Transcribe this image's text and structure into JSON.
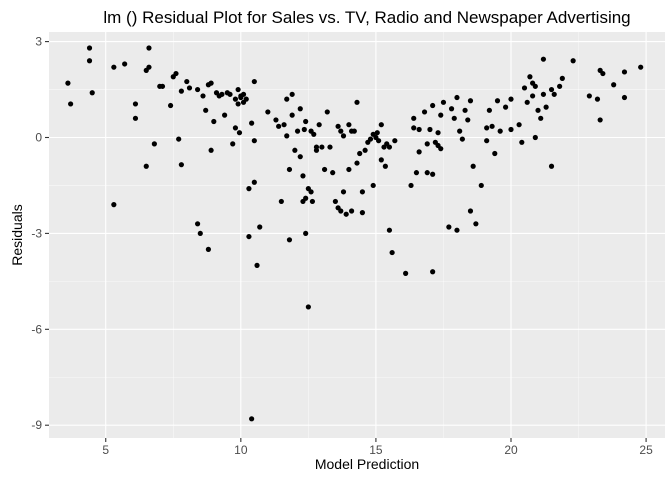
{
  "chart_data": {
    "type": "scatter",
    "title": "lm () Residual Plot for Sales vs. TV, Radio and Newspaper Advertising",
    "xlabel": "Model Prediction",
    "ylabel": "Residuals",
    "xlim": [
      2.9,
      25.7
    ],
    "ylim": [
      -9.4,
      3.3
    ],
    "x_ticks": [
      5,
      10,
      15,
      20,
      25
    ],
    "y_ticks": [
      3,
      0,
      -3,
      -6,
      -9
    ],
    "x_tick_labels": [
      "5",
      "10",
      "15",
      "20",
      "25"
    ],
    "y_tick_labels": [
      "3",
      "0",
      "-3",
      "-6",
      "-9"
    ],
    "grid": true,
    "legend": "none",
    "colors": {
      "panel": "#ebebeb",
      "grid": "#ffffff",
      "point": "#000000"
    },
    "points": [
      [
        3.6,
        1.7
      ],
      [
        3.7,
        1.05
      ],
      [
        4.4,
        2.8
      ],
      [
        4.4,
        2.4
      ],
      [
        4.5,
        1.4
      ],
      [
        5.3,
        2.2
      ],
      [
        5.3,
        -2.1
      ],
      [
        5.7,
        2.3
      ],
      [
        6.1,
        1.05
      ],
      [
        6.1,
        0.6
      ],
      [
        6.5,
        -0.9
      ],
      [
        6.5,
        2.1
      ],
      [
        6.6,
        2.8
      ],
      [
        6.6,
        2.2
      ],
      [
        6.8,
        -0.2
      ],
      [
        7.0,
        1.6
      ],
      [
        7.1,
        1.6
      ],
      [
        7.4,
        1.0
      ],
      [
        7.5,
        1.9
      ],
      [
        7.6,
        2.0
      ],
      [
        7.7,
        -0.05
      ],
      [
        7.8,
        1.45
      ],
      [
        7.8,
        -0.85
      ],
      [
        8.0,
        1.75
      ],
      [
        8.1,
        1.55
      ],
      [
        8.4,
        1.5
      ],
      [
        8.4,
        -2.7
      ],
      [
        8.5,
        -3.0
      ],
      [
        8.6,
        1.3
      ],
      [
        8.7,
        0.85
      ],
      [
        8.8,
        1.65
      ],
      [
        8.8,
        -3.5
      ],
      [
        8.9,
        -0.4
      ],
      [
        8.9,
        1.7
      ],
      [
        9.0,
        0.5
      ],
      [
        9.1,
        1.4
      ],
      [
        9.2,
        1.3
      ],
      [
        9.3,
        1.35
      ],
      [
        9.4,
        0.7
      ],
      [
        9.5,
        1.4
      ],
      [
        9.6,
        1.35
      ],
      [
        9.7,
        -0.2
      ],
      [
        9.8,
        0.3
      ],
      [
        9.8,
        1.2
      ],
      [
        9.9,
        1.5
      ],
      [
        9.9,
        1.05
      ],
      [
        9.95,
        0.15
      ],
      [
        10.0,
        1.3
      ],
      [
        10.0,
        1.25
      ],
      [
        10.1,
        1.35
      ],
      [
        10.1,
        1.1
      ],
      [
        10.2,
        1.2
      ],
      [
        10.3,
        -1.6
      ],
      [
        10.3,
        -3.1
      ],
      [
        10.4,
        -8.8
      ],
      [
        10.4,
        0.45
      ],
      [
        10.5,
        -1.4
      ],
      [
        10.5,
        1.75
      ],
      [
        10.5,
        -0.1
      ],
      [
        10.6,
        -4.0
      ],
      [
        10.7,
        -2.8
      ],
      [
        11.0,
        0.8
      ],
      [
        11.3,
        0.55
      ],
      [
        11.4,
        0.35
      ],
      [
        11.5,
        -2.0
      ],
      [
        11.6,
        0.4
      ],
      [
        11.7,
        1.2
      ],
      [
        11.7,
        0.05
      ],
      [
        11.8,
        -3.2
      ],
      [
        11.8,
        -1.0
      ],
      [
        11.9,
        0.7
      ],
      [
        11.9,
        1.35
      ],
      [
        12.0,
        -0.4
      ],
      [
        12.1,
        0.2
      ],
      [
        12.2,
        -0.6
      ],
      [
        12.2,
        0.9
      ],
      [
        12.3,
        -1.2
      ],
      [
        12.3,
        -2.0
      ],
      [
        12.35,
        0.25
      ],
      [
        12.4,
        0.5
      ],
      [
        12.4,
        -1.9
      ],
      [
        12.4,
        -3.0
      ],
      [
        12.5,
        -5.3
      ],
      [
        12.5,
        -1.6
      ],
      [
        12.6,
        0.2
      ],
      [
        12.6,
        -1.7
      ],
      [
        12.65,
        -2.0
      ],
      [
        12.7,
        0.1
      ],
      [
        12.8,
        -0.3
      ],
      [
        12.8,
        -0.4
      ],
      [
        12.9,
        0.4
      ],
      [
        13.0,
        -0.3
      ],
      [
        13.1,
        -1.0
      ],
      [
        13.2,
        0.8
      ],
      [
        13.3,
        -0.3
      ],
      [
        13.4,
        -1.1
      ],
      [
        13.5,
        -2.0
      ],
      [
        13.6,
        0.35
      ],
      [
        13.6,
        -2.2
      ],
      [
        13.7,
        0.2
      ],
      [
        13.7,
        -2.3
      ],
      [
        13.8,
        0.05
      ],
      [
        13.8,
        -1.7
      ],
      [
        13.9,
        -2.4
      ],
      [
        14.0,
        0.4
      ],
      [
        14.0,
        -1.0
      ],
      [
        14.1,
        0.2
      ],
      [
        14.1,
        -2.3
      ],
      [
        14.2,
        0.2
      ],
      [
        14.3,
        1.1
      ],
      [
        14.3,
        -0.8
      ],
      [
        14.4,
        -0.5
      ],
      [
        14.5,
        -2.35
      ],
      [
        14.5,
        -1.7
      ],
      [
        14.6,
        -0.4
      ],
      [
        14.7,
        -0.15
      ],
      [
        14.8,
        -0.05
      ],
      [
        14.9,
        0.1
      ],
      [
        14.9,
        -1.5
      ],
      [
        15.0,
        0.0
      ],
      [
        15.05,
        0.15
      ],
      [
        15.1,
        -0.1
      ],
      [
        15.2,
        0.4
      ],
      [
        15.2,
        -0.7
      ],
      [
        15.3,
        -0.3
      ],
      [
        15.35,
        -0.9
      ],
      [
        15.4,
        -0.2
      ],
      [
        15.5,
        -0.3
      ],
      [
        15.5,
        -2.9
      ],
      [
        15.6,
        -3.6
      ],
      [
        15.7,
        -0.1
      ],
      [
        16.1,
        -4.25
      ],
      [
        16.3,
        -1.5
      ],
      [
        16.4,
        0.3
      ],
      [
        16.4,
        0.6
      ],
      [
        16.5,
        -1.1
      ],
      [
        16.6,
        -0.45
      ],
      [
        16.6,
        0.25
      ],
      [
        16.8,
        0.8
      ],
      [
        16.9,
        -0.2
      ],
      [
        16.9,
        -1.1
      ],
      [
        17.0,
        0.25
      ],
      [
        17.1,
        1.0
      ],
      [
        17.1,
        -1.15
      ],
      [
        17.1,
        -4.2
      ],
      [
        17.2,
        -0.15
      ],
      [
        17.3,
        0.15
      ],
      [
        17.3,
        -0.25
      ],
      [
        17.4,
        0.7
      ],
      [
        17.4,
        -0.35
      ],
      [
        17.5,
        1.1
      ],
      [
        17.7,
        -2.8
      ],
      [
        17.8,
        0.9
      ],
      [
        17.9,
        0.6
      ],
      [
        18.0,
        -2.9
      ],
      [
        18.0,
        1.25
      ],
      [
        18.1,
        0.2
      ],
      [
        18.2,
        -0.05
      ],
      [
        18.3,
        0.85
      ],
      [
        18.4,
        0.55
      ],
      [
        18.5,
        1.15
      ],
      [
        18.5,
        -2.3
      ],
      [
        18.6,
        -0.9
      ],
      [
        18.7,
        -2.7
      ],
      [
        18.9,
        -1.5
      ],
      [
        19.1,
        0.3
      ],
      [
        19.1,
        -0.1
      ],
      [
        19.2,
        0.85
      ],
      [
        19.3,
        0.35
      ],
      [
        19.4,
        -0.5
      ],
      [
        19.5,
        1.15
      ],
      [
        19.6,
        0.2
      ],
      [
        19.8,
        0.95
      ],
      [
        20.0,
        0.25
      ],
      [
        20.0,
        1.2
      ],
      [
        20.3,
        0.4
      ],
      [
        20.4,
        -0.15
      ],
      [
        20.5,
        1.55
      ],
      [
        20.6,
        1.1
      ],
      [
        20.7,
        1.9
      ],
      [
        20.8,
        1.3
      ],
      [
        20.8,
        1.7
      ],
      [
        20.9,
        1.6
      ],
      [
        20.9,
        0.0
      ],
      [
        21.0,
        0.85
      ],
      [
        21.1,
        0.6
      ],
      [
        21.2,
        1.35
      ],
      [
        21.2,
        2.45
      ],
      [
        21.3,
        0.95
      ],
      [
        21.5,
        -0.9
      ],
      [
        21.5,
        1.5
      ],
      [
        21.6,
        1.35
      ],
      [
        21.8,
        1.6
      ],
      [
        21.9,
        1.85
      ],
      [
        22.3,
        2.4
      ],
      [
        22.9,
        1.3
      ],
      [
        23.2,
        1.2
      ],
      [
        23.3,
        0.55
      ],
      [
        23.3,
        2.1
      ],
      [
        23.4,
        2.0
      ],
      [
        23.8,
        1.65
      ],
      [
        24.2,
        1.25
      ],
      [
        24.2,
        2.05
      ],
      [
        24.8,
        2.2
      ]
    ]
  }
}
